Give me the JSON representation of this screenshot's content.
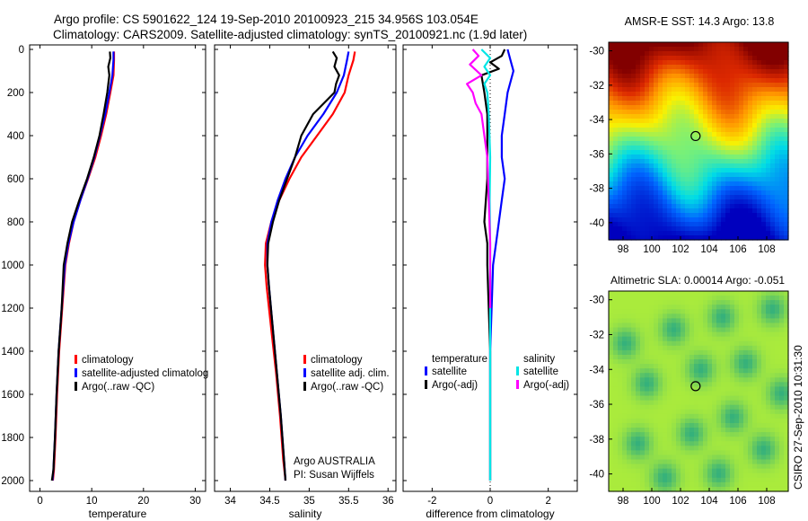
{
  "header": {
    "line1": "Argo profile: CS 5901622_124 19-Sep-2010 20100923_215 34.956S 103.054E",
    "line2": "Climatology: CARS2009. Satellite-adjusted climatology: synTS_20100921.nc (1.9d later)"
  },
  "side_stamp": "CSIRO 27-Sep-2010 10:31:30",
  "colors": {
    "red": "#ff0000",
    "blue": "#0000ff",
    "black": "#000000",
    "cyan": "#00e5e5",
    "magenta": "#ff00ff"
  },
  "chart_data": [
    {
      "type": "line",
      "xlabel": "temperature",
      "xlim": [
        -2,
        32
      ],
      "xticks": [
        0,
        10,
        20,
        30
      ],
      "ylim": [
        0,
        2050
      ],
      "yticks": [
        0,
        200,
        400,
        600,
        800,
        1000,
        1200,
        1400,
        1600,
        1800,
        2000
      ],
      "y_reversed": true,
      "legend": {
        "position": "lower-left",
        "entries": [
          "climatology",
          "satellite-adjusted climatolog",
          "Argo(..raw -QC)"
        ]
      },
      "series": [
        {
          "name": "climatology",
          "color": "red",
          "x": [
            14.3,
            14.3,
            14.2,
            13.6,
            12.8,
            11.8,
            10.7,
            9.3,
            7.8,
            6.5,
            5.6,
            4.9,
            4.3,
            3.7,
            3.3,
            3.0,
            2.7,
            2.5
          ],
          "y": [
            10,
            50,
            120,
            200,
            300,
            400,
            500,
            600,
            700,
            800,
            900,
            1000,
            1200,
            1400,
            1600,
            1800,
            1950,
            2000
          ]
        },
        {
          "name": "satellite-adjusted climatolog",
          "color": "blue",
          "x": [
            14.2,
            14.2,
            14.0,
            13.4,
            12.6,
            11.6,
            10.5,
            9.2,
            7.8,
            6.5,
            5.5,
            4.8,
            4.2,
            3.6,
            3.2,
            2.9,
            2.6,
            2.4
          ],
          "y": [
            10,
            50,
            120,
            200,
            300,
            400,
            500,
            600,
            700,
            800,
            900,
            1000,
            1200,
            1400,
            1600,
            1800,
            1950,
            2000
          ]
        },
        {
          "name": "Argo(..raw -QC)",
          "color": "black",
          "x": [
            13.5,
            13.6,
            13.2,
            13.4,
            13.0,
            12.3,
            11.5,
            10.4,
            9.1,
            7.6,
            6.2,
            5.3,
            4.6,
            4.2,
            3.6,
            3.2,
            2.9,
            2.6,
            2.3
          ],
          "y": [
            10,
            40,
            80,
            120,
            200,
            300,
            400,
            500,
            600,
            700,
            800,
            900,
            1000,
            1200,
            1400,
            1600,
            1800,
            1950,
            2000
          ]
        }
      ]
    },
    {
      "type": "line",
      "xlabel": "salinity",
      "xlim": [
        33.8,
        36.1
      ],
      "xticks": [
        34,
        34.5,
        35,
        35.5,
        36
      ],
      "ylim": [
        0,
        2050
      ],
      "y_reversed": true,
      "legend": {
        "position": "lower-right",
        "entries": [
          "climatology",
          "satellite adj. clim.",
          "Argo(..raw -QC)"
        ]
      },
      "annotation": [
        "Argo AUSTRALIA",
        "PI: Susan Wijffels"
      ],
      "series": [
        {
          "name": "climatology",
          "color": "red",
          "x": [
            35.58,
            35.56,
            35.5,
            35.45,
            35.3,
            35.1,
            34.9,
            34.75,
            34.62,
            34.52,
            34.45,
            34.44,
            34.46,
            34.52,
            34.58,
            34.63,
            34.67,
            34.7
          ],
          "y": [
            10,
            50,
            120,
            200,
            300,
            400,
            500,
            600,
            700,
            800,
            900,
            1000,
            1100,
            1300,
            1500,
            1700,
            1900,
            2000
          ]
        },
        {
          "name": "satellite adj. clim.",
          "color": "blue",
          "x": [
            35.5,
            35.48,
            35.44,
            35.35,
            35.18,
            34.98,
            34.82,
            34.7,
            34.6,
            34.52,
            34.47,
            34.47,
            34.49,
            34.54,
            34.59,
            34.64,
            34.68,
            34.7
          ],
          "y": [
            10,
            50,
            120,
            200,
            300,
            400,
            500,
            600,
            700,
            800,
            900,
            1000,
            1100,
            1300,
            1500,
            1700,
            1900,
            2000
          ]
        },
        {
          "name": "Argo(..raw -QC)",
          "color": "black",
          "x": [
            35.3,
            35.35,
            35.32,
            35.38,
            35.34,
            35.32,
            35.05,
            34.9,
            34.82,
            34.72,
            34.62,
            34.54,
            34.48,
            34.47,
            34.49,
            34.54,
            34.59,
            34.64,
            34.68,
            34.7
          ],
          "y": [
            10,
            40,
            80,
            120,
            160,
            200,
            300,
            400,
            500,
            600,
            700,
            800,
            900,
            1000,
            1100,
            1300,
            1500,
            1700,
            1900,
            2000
          ]
        }
      ]
    },
    {
      "type": "line",
      "xlabel": "difference from climatology",
      "xlim": [
        -3,
        3
      ],
      "xticks": [
        -2,
        0,
        2
      ],
      "ylim": [
        0,
        2050
      ],
      "y_reversed": true,
      "legend": {
        "position": "lower",
        "headers": [
          "temperature",
          "salinity"
        ],
        "entries": [
          "satellite",
          "Argo(-adj)",
          "satellite",
          "Argo(-adj)"
        ]
      },
      "series": [
        {
          "name": "satellite",
          "group": "temperature",
          "color": "blue",
          "x": [
            0.6,
            0.7,
            0.8,
            0.6,
            0.5,
            0.4,
            0.4,
            0.5,
            0.4,
            0.3,
            0.2,
            0.1,
            0.05,
            0,
            0,
            0,
            0
          ],
          "y": [
            0,
            50,
            100,
            200,
            300,
            400,
            500,
            600,
            700,
            800,
            900,
            1000,
            1200,
            1400,
            1600,
            1800,
            2000
          ]
        },
        {
          "name": "Argo(-adj)",
          "group": "temperature",
          "color": "black",
          "x": [
            0.5,
            0.4,
            0,
            0.3,
            -0.3,
            -0.2,
            -0.1,
            -0.1,
            -0.1,
            -0.1,
            -0.2,
            -0.1,
            -0.1,
            -0.05,
            0,
            0,
            0
          ],
          "y": [
            0,
            30,
            60,
            90,
            120,
            200,
            300,
            400,
            500,
            600,
            800,
            900,
            1000,
            1200,
            1400,
            1600,
            2000
          ]
        },
        {
          "name": "satellite",
          "group": "salinity",
          "color": "cyan",
          "x": [
            -0.3,
            0,
            -0.2,
            0,
            -0.2,
            -0.1,
            -0.05,
            0,
            -0.02,
            0,
            0,
            0,
            0
          ],
          "y": [
            0,
            40,
            80,
            120,
            160,
            200,
            300,
            500,
            700,
            900,
            1200,
            1600,
            2000
          ]
        },
        {
          "name": "Argo(-adj)",
          "group": "salinity",
          "color": "magenta",
          "x": [
            -0.6,
            -0.4,
            -0.7,
            -0.3,
            -0.8,
            -0.6,
            -0.5,
            -0.3,
            -0.2,
            -0.1,
            -0.05,
            0,
            0
          ],
          "y": [
            0,
            30,
            70,
            120,
            160,
            200,
            250,
            300,
            400,
            500,
            700,
            900,
            1200
          ]
        }
      ]
    },
    {
      "type": "heatmap",
      "title": "AMSR-E SST: 14.3 Argo: 13.8",
      "xlim": [
        97,
        109.5
      ],
      "xticks": [
        98,
        100,
        102,
        104,
        106,
        108
      ],
      "ylim": [
        -41,
        -29.5
      ],
      "yticks": [
        -30,
        -32,
        -34,
        -36,
        -38,
        -40
      ],
      "marker": {
        "lon": 103.05,
        "lat": -34.96
      },
      "field": {
        "low_color": "#0000c0",
        "high_color": "#800000",
        "gradient": "north-warm to south-cool"
      }
    },
    {
      "type": "heatmap",
      "title": "Altimetric SLA: 0.00014 Argo: -0.051",
      "xlim": [
        97,
        109.5
      ],
      "xticks": [
        98,
        100,
        102,
        104,
        106,
        108
      ],
      "ylim": [
        -41,
        -29.5
      ],
      "yticks": [
        -30,
        -32,
        -34,
        -36,
        -38,
        -40
      ],
      "marker": {
        "lon": 103.05,
        "lat": -34.96
      },
      "field": {
        "background_color": "#aaee33",
        "blob_color": "#22aa88"
      }
    }
  ]
}
